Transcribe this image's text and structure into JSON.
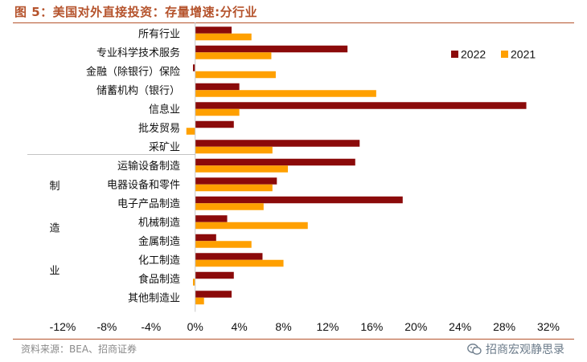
{
  "title": "图 5：美国对外直接投资：存量增速:分行业",
  "source": "资料来源：BEA、招商证券",
  "watermark": "招商宏观静思录",
  "colors": {
    "s2022": "#8b0a0a",
    "s2021": "#ffa000",
    "accent": "#b5532c"
  },
  "chart_data": {
    "type": "bar",
    "orientation": "horizontal",
    "categories": [
      "所有行业",
      "专业科学技术服务",
      "金融（除银行）保险",
      "储蓄机构（银行）",
      "信息业",
      "批发贸易",
      "采矿业",
      "运输设备制造",
      "电器设备和零件",
      "电子产品制造",
      "机械制造",
      "金属制造",
      "化工制造",
      "食品制造",
      "其他制造业"
    ],
    "group_label": {
      "text": [
        "制",
        "造",
        "业"
      ],
      "first_index": 7,
      "last_index": 14
    },
    "series": [
      {
        "name": "2022",
        "values": [
          3.3,
          13.8,
          -0.2,
          4.0,
          30.0,
          3.5,
          14.9,
          14.5,
          7.4,
          18.8,
          2.9,
          1.9,
          6.1,
          3.5,
          3.3
        ]
      },
      {
        "name": "2021",
        "values": [
          5.1,
          6.9,
          7.3,
          16.4,
          4.0,
          -0.8,
          7.0,
          8.4,
          7.0,
          6.2,
          10.2,
          5.1,
          8.0,
          -0.2,
          0.8
        ]
      }
    ],
    "xlim": [
      -12,
      32
    ],
    "xticks": [
      "-12%",
      "-8%",
      "-4%",
      "0%",
      "4%",
      "8%",
      "12%",
      "16%",
      "20%",
      "24%",
      "28%",
      "32%"
    ],
    "legend_position": "top-right",
    "grid": false
  }
}
